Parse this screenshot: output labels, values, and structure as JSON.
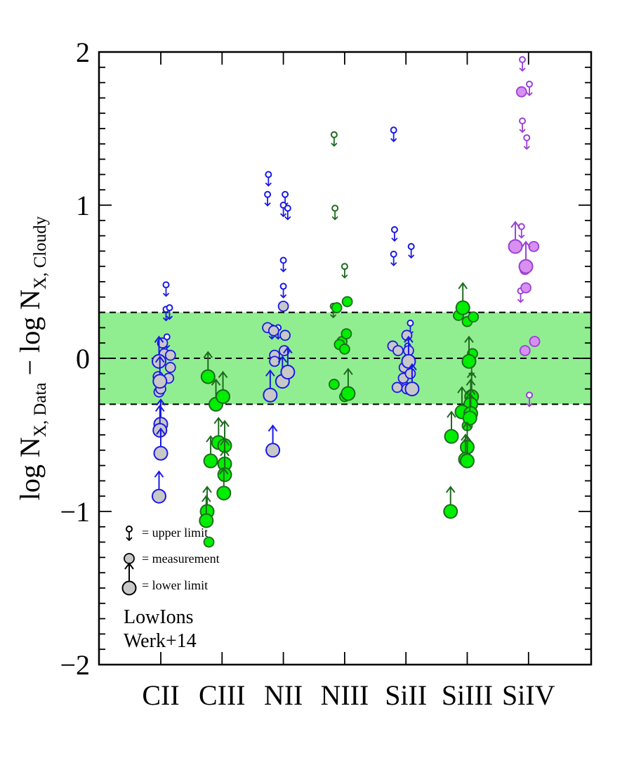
{
  "chart_data": {
    "type": "scatter",
    "title": "",
    "xlabel": "",
    "ylabel": {
      "prefix1": "log N",
      "sub1": "X, Data",
      "minus": " − log N",
      "sub2": "X, Cloudy"
    },
    "ylim": [
      -2.0,
      2.0
    ],
    "y_major_ticks": [
      -2,
      -1,
      0,
      1,
      2
    ],
    "y_tick_labels": [
      "−2",
      "−1",
      "0",
      "1",
      "2"
    ],
    "y_minor_step": 0.1,
    "categories": [
      "CII",
      "CIII",
      "NII",
      "NIII",
      "SiII",
      "SiIII",
      "SiIV"
    ],
    "band": {
      "low": -0.3,
      "high": 0.3,
      "color": "#90ee90"
    },
    "reference_lines": [
      -0.3,
      0.0,
      0.3
    ],
    "annotations": [
      "LowIons",
      "Werk+14"
    ],
    "legend": {
      "position": "lower-left",
      "entries": [
        {
          "kind": "upper",
          "label": "= upper limit"
        },
        {
          "kind": "meas",
          "label": "= measurement"
        },
        {
          "kind": "lower",
          "label": "= lower limit"
        }
      ]
    },
    "colors": {
      "CII": "#1a1ae6",
      "CIII": "#1e6b1e",
      "NII": "#1a1ae6",
      "NIII": "#1e6b1e",
      "SiII": "#1a1ae6",
      "SiIII": "#1e6b1e",
      "SiIV": "#9b40d6",
      "fill_grey": "#c8c8c8",
      "fill_green": "#00ee00",
      "fill_purple": "#d890f0"
    },
    "series": [
      {
        "name": "CII",
        "upper": [
          [
            0.3,
            0.48
          ],
          [
            0.3,
            0.32
          ],
          [
            0.5,
            0.33
          ],
          [
            0.35,
            0.14
          ]
        ],
        "meas": [
          [
            -0.1,
            -0.22
          ],
          [
            -0.05,
            -0.14
          ],
          [
            -0.15,
            -0.12
          ],
          [
            0.1,
            0.1
          ],
          [
            0.2,
            0.03
          ],
          [
            0.55,
            0.02
          ],
          [
            0.45,
            -0.13
          ],
          [
            0.55,
            -0.06
          ],
          [
            0.0,
            -0.2
          ]
        ],
        "lower": [
          [
            -0.1,
            -0.02
          ],
          [
            -0.05,
            -0.15
          ],
          [
            0.0,
            -0.43
          ],
          [
            -0.05,
            -0.47
          ],
          [
            0.0,
            -0.62
          ],
          [
            -0.1,
            -0.9
          ]
        ]
      },
      {
        "name": "CIII",
        "upper": [],
        "meas": [
          [
            -0.75,
            -1.2
          ]
        ],
        "lower": [
          [
            -0.8,
            -0.12
          ],
          [
            -0.35,
            -0.3
          ],
          [
            0.05,
            -0.25
          ],
          [
            -0.65,
            -0.67
          ],
          [
            -0.2,
            -0.55
          ],
          [
            0.15,
            -0.57
          ],
          [
            0.15,
            -0.69
          ],
          [
            0.15,
            -0.76
          ],
          [
            0.1,
            -0.88
          ],
          [
            -0.85,
            -1.0
          ],
          [
            -0.9,
            -1.06
          ]
        ]
      },
      {
        "name": "NII",
        "upper": [
          [
            -0.85,
            1.2
          ],
          [
            -0.9,
            1.07
          ],
          [
            0.1,
            1.07
          ],
          [
            0.0,
            1.0
          ],
          [
            0.25,
            0.98
          ],
          [
            0.0,
            0.64
          ],
          [
            0.0,
            0.47
          ],
          [
            -0.65,
            0.2
          ],
          [
            -0.3,
            0.2
          ]
        ],
        "meas": [
          [
            -0.9,
            0.2
          ],
          [
            -0.55,
            0.18
          ],
          [
            -0.5,
            0.02
          ],
          [
            -0.5,
            -0.02
          ],
          [
            0.0,
            0.34
          ],
          [
            0.1,
            0.15
          ],
          [
            0.05,
            0.05
          ]
        ],
        "lower": [
          [
            -0.75,
            -0.24
          ],
          [
            -0.05,
            -0.15
          ],
          [
            0.25,
            -0.09
          ],
          [
            -0.6,
            -0.6
          ]
        ]
      },
      {
        "name": "NIII",
        "upper": [
          [
            -0.6,
            1.46
          ],
          [
            -0.55,
            0.98
          ],
          [
            0.0,
            0.6
          ],
          [
            -0.65,
            0.34
          ]
        ],
        "meas": [
          [
            -0.45,
            0.33
          ],
          [
            0.15,
            0.37
          ],
          [
            -0.15,
            0.11
          ],
          [
            -0.3,
            0.09
          ],
          [
            0.0,
            0.06
          ],
          [
            0.1,
            0.16
          ],
          [
            -0.6,
            -0.17
          ],
          [
            0.0,
            -0.25
          ]
        ],
        "lower": [
          [
            0.2,
            -0.23
          ]
        ]
      },
      {
        "name": "SiII",
        "upper": [
          [
            -0.7,
            1.49
          ],
          [
            -0.65,
            0.84
          ],
          [
            -0.7,
            0.68
          ],
          [
            0.3,
            0.73
          ],
          [
            0.05,
            0.05
          ],
          [
            0.25,
            0.23
          ],
          [
            0.1,
            0.08
          ]
        ],
        "meas": [
          [
            -0.75,
            0.08
          ],
          [
            -0.45,
            0.05
          ],
          [
            0.05,
            0.15
          ],
          [
            0.15,
            0.05
          ],
          [
            -0.1,
            -0.06
          ],
          [
            -0.15,
            -0.13
          ],
          [
            0.0,
            -0.19
          ],
          [
            0.25,
            -0.1
          ],
          [
            -0.5,
            -0.19
          ],
          [
            0.05,
            -0.2
          ]
        ],
        "lower": [
          [
            0.15,
            -0.02
          ],
          [
            0.35,
            -0.2
          ]
        ]
      },
      {
        "name": "SiIII",
        "upper": [
          [
            0.25,
            -0.04
          ]
        ],
        "meas": [
          [
            -0.5,
            0.28
          ],
          [
            0.0,
            0.24
          ],
          [
            0.35,
            0.27
          ],
          [
            0.3,
            0.03
          ],
          [
            0.0,
            -0.44
          ]
        ],
        "lower": [
          [
            -0.25,
            0.33
          ],
          [
            0.1,
            -0.02
          ],
          [
            0.25,
            -0.25
          ],
          [
            0.2,
            -0.3
          ],
          [
            -0.3,
            -0.35
          ],
          [
            0.2,
            -0.36
          ],
          [
            0.15,
            -0.39
          ],
          [
            -0.9,
            -0.51
          ],
          [
            0.0,
            -0.58
          ],
          [
            -0.1,
            -0.66
          ],
          [
            0.0,
            -0.67
          ],
          [
            -0.95,
            -1.0
          ]
        ]
      },
      {
        "name": "SiIV",
        "upper": [
          [
            -0.35,
            1.95
          ],
          [
            0.05,
            1.79
          ],
          [
            -0.35,
            1.55
          ],
          [
            -0.1,
            1.44
          ],
          [
            -0.4,
            0.86
          ],
          [
            -0.45,
            0.44
          ],
          [
            0.05,
            -0.24
          ]
        ],
        "meas": [
          [
            -0.4,
            1.74
          ],
          [
            0.3,
            0.73
          ],
          [
            -0.2,
            0.58
          ],
          [
            -0.15,
            0.46
          ],
          [
            -0.2,
            0.05
          ],
          [
            0.35,
            0.11
          ]
        ],
        "lower": [
          [
            -0.75,
            0.73
          ],
          [
            -0.15,
            0.6
          ]
        ]
      }
    ]
  }
}
